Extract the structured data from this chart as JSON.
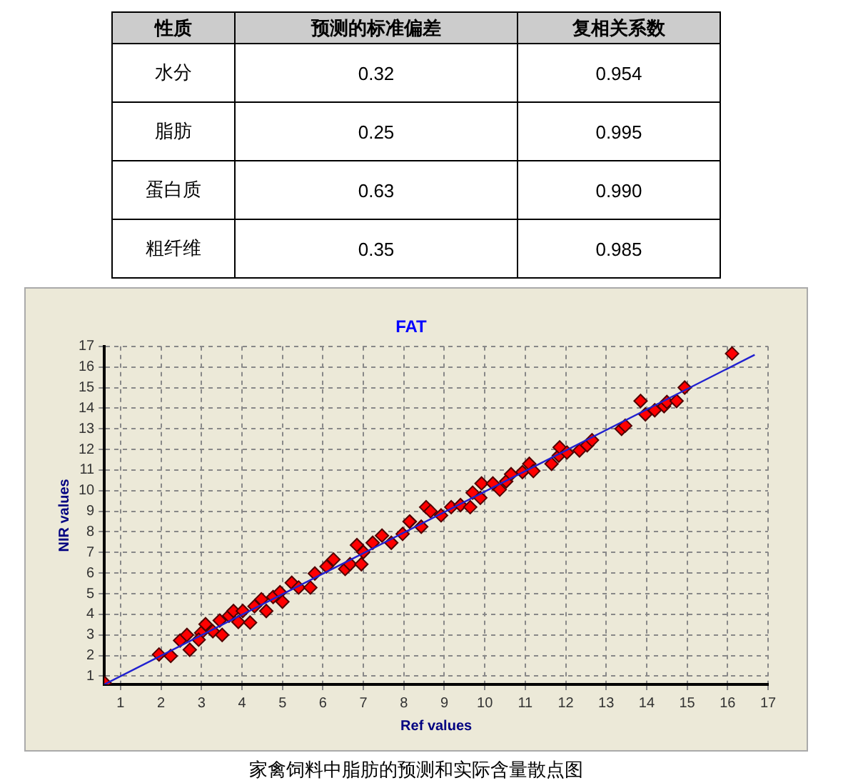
{
  "chart_data": [
    {
      "type": "other",
      "legend_title": "性质",
      "categories": [
        "水分",
        "脂肪",
        "蛋白质",
        "粗纤维"
      ],
      "series": [
        {
          "name": "预测的标准偏差",
          "values": [
            0.32,
            0.25,
            0.63,
            0.35
          ],
          "value_labels": [
            "0.32",
            "0.25",
            "0.63",
            "0.35"
          ]
        },
        {
          "name": "复相关系数",
          "values": [
            0.954,
            0.995,
            0.99,
            0.985
          ],
          "value_labels": [
            "0.954",
            "0.995",
            "0.990",
            "0.985"
          ]
        }
      ]
    },
    {
      "type": "scatter",
      "title": "FAT",
      "xlabel": "Ref values",
      "ylabel": "NIR values",
      "xlim": [
        0.6,
        17
      ],
      "ylim": [
        0.6,
        17
      ],
      "xticks": [
        1,
        2,
        3,
        4,
        5,
        6,
        7,
        8,
        9,
        10,
        11,
        12,
        13,
        14,
        15,
        16,
        17
      ],
      "yticks": [
        1,
        2,
        3,
        4,
        5,
        6,
        7,
        8,
        9,
        10,
        11,
        12,
        13,
        14,
        15,
        16,
        17
      ],
      "grid": true,
      "legend": false,
      "marker": "diamond",
      "annotations": [
        "家禽饲料中脂肪的预测和实际含量散点图"
      ],
      "series": [
        {
          "type": "scatter",
          "color": "#ff0000",
          "x": [
            0.61,
            1.95,
            2.24,
            2.47,
            2.64,
            2.71,
            2.99,
            2.93,
            3.1,
            3.28,
            3.45,
            3.51,
            3.68,
            3.79,
            3.91,
            4.02,
            4.2,
            4.31,
            4.48,
            4.6,
            4.77,
            4.94,
            5.0,
            5.23,
            5.4,
            5.69,
            5.8,
            6.09,
            6.26,
            6.55,
            6.67,
            6.84,
            6.95,
            7.0,
            7.23,
            7.46,
            7.69,
            7.97,
            8.15,
            8.14,
            8.43,
            8.55,
            8.66,
            8.92,
            9.17,
            9.4,
            9.64,
            9.7,
            9.89,
            9.92,
            10.2,
            10.37,
            10.53,
            10.65,
            10.93,
            11.1,
            11.2,
            11.65,
            11.83,
            11.85,
            12.03,
            12.34,
            12.53,
            12.65,
            13.38,
            13.47,
            13.85,
            13.97,
            14.2,
            14.43,
            14.5,
            14.74,
            14.94,
            16.11
          ],
          "values": [
            0.66,
            2.05,
            1.98,
            2.73,
            3.0,
            2.28,
            3.1,
            2.77,
            3.52,
            3.18,
            3.7,
            3.0,
            3.93,
            4.16,
            3.63,
            4.16,
            3.6,
            4.39,
            4.73,
            4.16,
            4.84,
            5.07,
            4.61,
            5.53,
            5.3,
            5.3,
            5.98,
            6.32,
            6.66,
            6.2,
            6.43,
            7.36,
            6.43,
            7.02,
            7.47,
            7.82,
            7.47,
            7.9,
            8.5,
            8.5,
            8.25,
            9.2,
            9.0,
            8.8,
            9.2,
            9.3,
            9.2,
            9.9,
            9.65,
            10.35,
            10.35,
            10.05,
            10.45,
            10.8,
            10.9,
            11.3,
            10.95,
            11.3,
            11.7,
            12.1,
            11.85,
            11.95,
            12.2,
            12.45,
            13.0,
            13.15,
            14.35,
            13.7,
            13.9,
            14.1,
            14.3,
            14.35,
            15.0,
            16.65
          ]
        },
        {
          "type": "line",
          "color": "#2020d0",
          "marker": "none",
          "x": [
            0.6,
            16.67
          ],
          "values": [
            0.6,
            16.59
          ]
        }
      ]
    }
  ]
}
